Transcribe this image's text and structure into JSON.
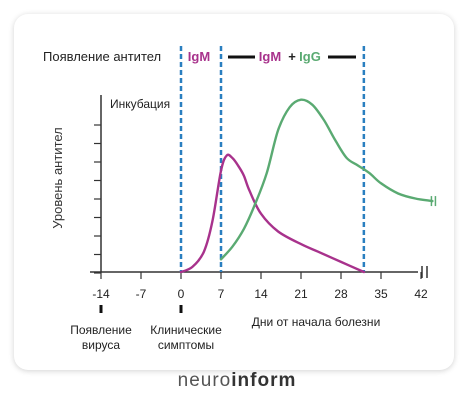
{
  "chart_data": {
    "type": "line",
    "ylabel": "Уровень антител",
    "xlabel": "Дни от начала болезни",
    "x_ticks": [
      -14,
      -7,
      0,
      7,
      14,
      21,
      28,
      35,
      42
    ],
    "xlim": [
      -14,
      42
    ],
    "header_label": "Появление антител",
    "header_igm": "IgM",
    "header_igm2": "IgM",
    "header_plus": "+",
    "header_igg": "IgG",
    "annotations": {
      "incubation": "Инкубация",
      "virus_line1": "Появление",
      "virus_line2": "вируса",
      "symptoms_line1": "Клинические",
      "symptoms_line2": "симптомы"
    },
    "vlines": [
      0,
      7,
      32
    ],
    "series": [
      {
        "name": "IgM",
        "color": "#a8328c",
        "x": [
          0,
          2,
          4,
          5.5,
          7,
          8,
          9,
          10,
          11,
          12,
          14,
          17,
          21,
          24,
          28,
          32
        ],
        "y": [
          0,
          2,
          8,
          20,
          40,
          46,
          45,
          42,
          38,
          32,
          23,
          16,
          11,
          8,
          4,
          0
        ]
      },
      {
        "name": "IgG",
        "color": "#5aaa72",
        "x": [
          7,
          9,
          11,
          13,
          15,
          17,
          19,
          21,
          23,
          25,
          27,
          29,
          31,
          33,
          35,
          38,
          41,
          44
        ],
        "y": [
          5,
          10,
          17,
          27,
          39,
          56,
          65,
          68,
          66,
          60,
          52,
          45,
          42,
          39,
          35,
          31,
          29,
          28
        ]
      }
    ],
    "colors": {
      "axis": "#333333",
      "vline": "#2a7fc0",
      "igm": "#a8328c",
      "igg": "#5aaa72"
    }
  },
  "footer": {
    "left": "neuro",
    "right": "inform"
  }
}
